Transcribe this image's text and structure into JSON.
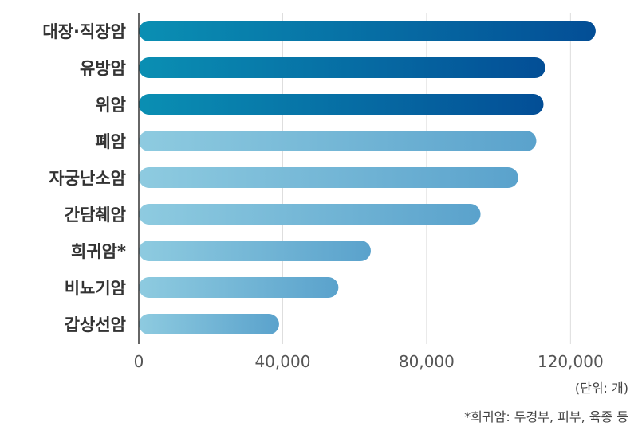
{
  "chart_data": {
    "type": "bar",
    "orientation": "horizontal",
    "categories": [
      "대장·직장암",
      "유방암",
      "위암",
      "폐암",
      "자궁난소암",
      "간담췌암",
      "희귀암*",
      "비뇨기암",
      "갑상선암"
    ],
    "values": [
      127000,
      113000,
      112500,
      110500,
      105500,
      95000,
      64500,
      55500,
      39000
    ],
    "emphasis": [
      true,
      true,
      true,
      false,
      false,
      false,
      false,
      false,
      false
    ],
    "xlim": [
      0,
      135000
    ],
    "xticks": [
      0,
      40000,
      80000,
      120000
    ],
    "xtick_labels": [
      "0",
      "40,000",
      "80,000",
      "120,000"
    ],
    "grid": "vertical",
    "colors": {
      "emphasis_start": "#0a8fb3",
      "emphasis_end": "#034e96",
      "normal_start": "#8ecbe0",
      "normal_end": "#5aa2cc",
      "axis": "#333333",
      "grid": "#dddddd"
    }
  },
  "notes": {
    "unit": "(단위: 개)",
    "footnote": "*희귀암: 두경부, 피부, 육종 등"
  }
}
